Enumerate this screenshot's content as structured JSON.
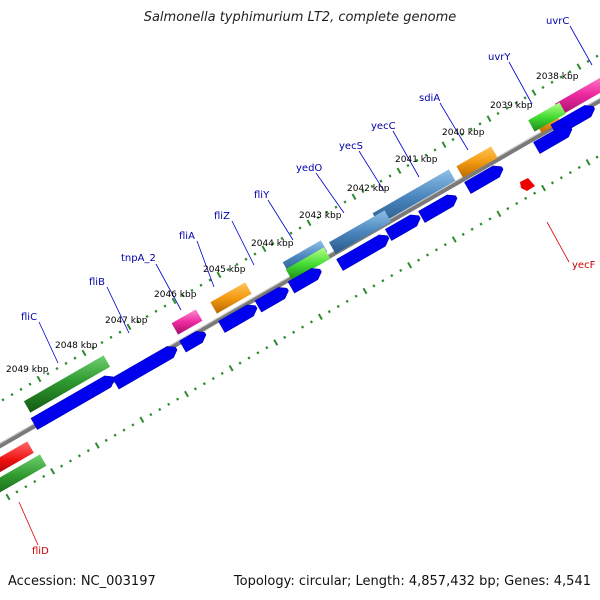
{
  "title": "Salmonella typhimurium LT2, complete genome",
  "footer": {
    "accession": "Accession: NC_003197",
    "summary": "Topology: circular; Length: 4,857,432 bp; Genes: 4,541"
  },
  "colors": {
    "backbone": "#7a7a7a",
    "tick": "#2e8b2e",
    "cds": "#0000ee",
    "label_blue": "#0000aa",
    "label_red": "#cc0000",
    "leader_blue": "#0000cc",
    "leader_red": "#dd0000"
  },
  "kbp_labels": [
    "2038 kbp",
    "2039 kbp",
    "2040 kbp",
    "2041 kbp",
    "2042 kbp",
    "2043 kbp",
    "2044 kbp",
    "2045 kbp",
    "2046 kbp",
    "2047 kbp",
    "2048 kbp",
    "2049 kbp"
  ],
  "gene_labels_top": [
    "uvrC",
    "uvrY",
    "sdiA",
    "yecC",
    "yecS",
    "yedO",
    "fliY",
    "fliZ",
    "fliA",
    "tnpA_2",
    "fliB",
    "fliC"
  ],
  "gene_labels_bottom": [
    "yecF",
    "fliD"
  ]
}
